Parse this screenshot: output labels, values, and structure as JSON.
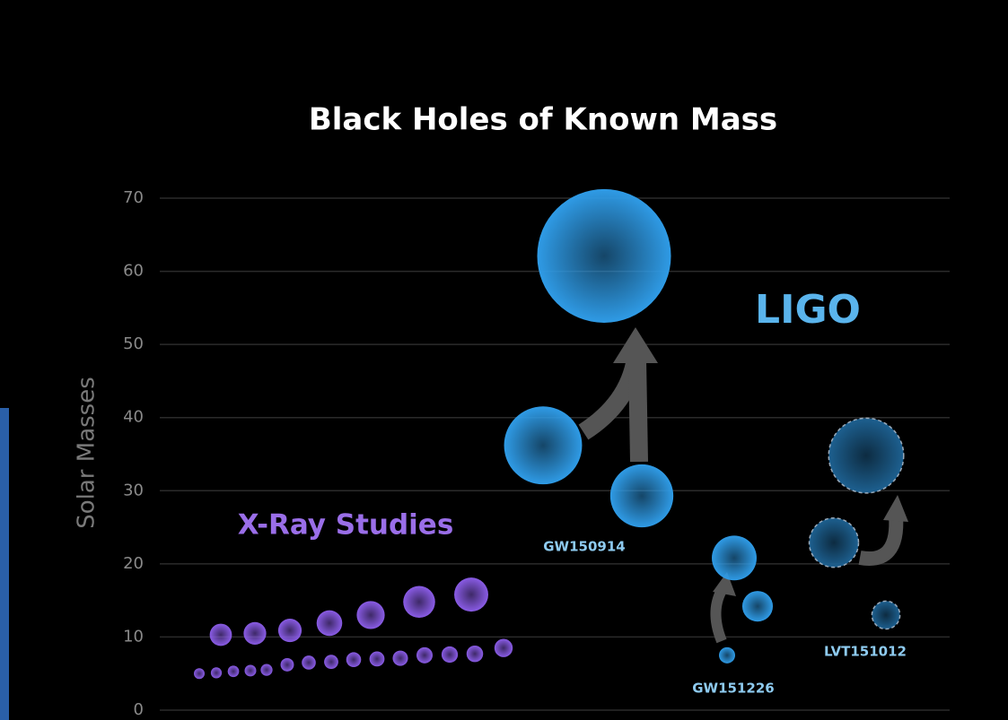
{
  "chart_data": {
    "type": "bubble",
    "title": "Black Holes of Known Mass",
    "ylabel": "Solar Masses",
    "annotation": "LIGO",
    "ylim": [
      0,
      70
    ],
    "yticks": [
      0,
      10,
      20,
      30,
      40,
      50,
      60,
      70
    ],
    "grid": true,
    "series": [
      {
        "name": "X-Ray Studies",
        "color": "#8a5ce6",
        "values": [
          10.3,
          10.5,
          10.9,
          11.9,
          13.0,
          14.8,
          15.8,
          5.0,
          5.1,
          5.3,
          5.4,
          5.5,
          6.2,
          6.5,
          6.6,
          6.9,
          7.0,
          7.1,
          7.5,
          7.6,
          7.7,
          8.5
        ]
      },
      {
        "name": "GW150914",
        "color": "#2f9be6",
        "values": [
          36.2,
          29.3,
          62.1
        ]
      },
      {
        "name": "GW151226",
        "color": "#2f9be6",
        "values": [
          20.8,
          14.2,
          7.5
        ]
      },
      {
        "name": "LVT151012",
        "color": "#1d6090",
        "dashed": true,
        "values": [
          22.9,
          13.0,
          34.8
        ]
      }
    ]
  }
}
